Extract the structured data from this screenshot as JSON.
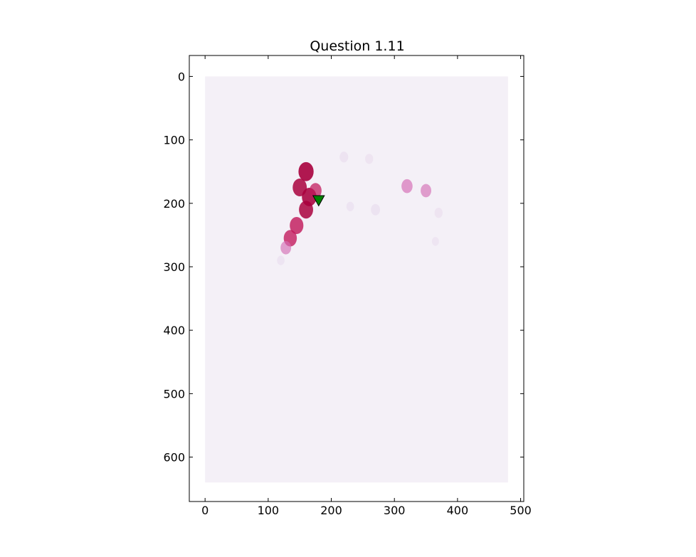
{
  "chart_data": {
    "type": "heatmap",
    "title": "Question 1.11",
    "xlabel": "",
    "ylabel": "",
    "xlim": [
      -25,
      505
    ],
    "ylim": [
      670,
      -33
    ],
    "y_inverted": true,
    "grid": false,
    "xticks": [
      0,
      100,
      200,
      300,
      400,
      500
    ],
    "yticks": [
      0,
      100,
      200,
      300,
      400,
      500,
      600
    ],
    "image_extent": {
      "x": [
        0,
        480
      ],
      "y": [
        0,
        640
      ]
    },
    "colormap": "PuRd",
    "colors": {
      "background": "#f4f0f7",
      "low": "#e7d8ec",
      "mid": "#d46fb5",
      "high": "#c2185b",
      "peak": "#a8003d"
    },
    "hotspots": [
      {
        "x": 150,
        "y": 175,
        "value": 0.9
      },
      {
        "x": 160,
        "y": 150,
        "value": 1.0
      },
      {
        "x": 165,
        "y": 190,
        "value": 0.95
      },
      {
        "x": 160,
        "y": 210,
        "value": 0.9
      },
      {
        "x": 145,
        "y": 235,
        "value": 0.85
      },
      {
        "x": 135,
        "y": 255,
        "value": 0.8
      },
      {
        "x": 128,
        "y": 270,
        "value": 0.55
      },
      {
        "x": 120,
        "y": 290,
        "value": 0.25
      },
      {
        "x": 175,
        "y": 180,
        "value": 0.7
      },
      {
        "x": 270,
        "y": 210,
        "value": 0.4
      },
      {
        "x": 230,
        "y": 205,
        "value": 0.25
      },
      {
        "x": 320,
        "y": 173,
        "value": 0.6
      },
      {
        "x": 350,
        "y": 180,
        "value": 0.55
      },
      {
        "x": 370,
        "y": 215,
        "value": 0.3
      },
      {
        "x": 365,
        "y": 260,
        "value": 0.2
      },
      {
        "x": 220,
        "y": 127,
        "value": 0.35
      },
      {
        "x": 260,
        "y": 130,
        "value": 0.3
      }
    ],
    "marker": {
      "x": 180,
      "y": 195,
      "shape": "triangle-down",
      "color": "#008000",
      "edge": "#000000"
    }
  }
}
